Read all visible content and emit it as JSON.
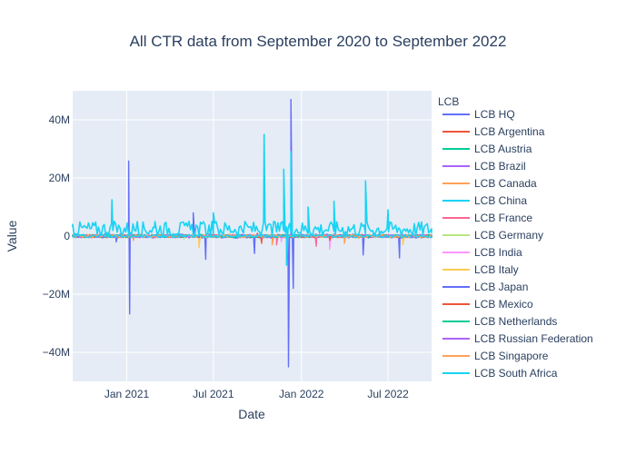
{
  "chart_data": {
    "type": "line",
    "title": "All CTR data from September 2020 to September 2022",
    "xlabel": "Date",
    "ylabel": "Value",
    "xlim": [
      "2020-09-10",
      "2022-09-30"
    ],
    "ylim": [
      -50000000,
      50000000
    ],
    "x_ticks": [
      {
        "date": "2021-01-01",
        "label": "Jan 2021"
      },
      {
        "date": "2021-07-01",
        "label": "Jul 2021"
      },
      {
        "date": "2022-01-01",
        "label": "Jan 2022"
      },
      {
        "date": "2022-07-01",
        "label": "Jul 2022"
      }
    ],
    "y_ticks": [
      {
        "value": 40000000,
        "label": "40M"
      },
      {
        "value": 20000000,
        "label": "20M"
      },
      {
        "value": 0,
        "label": "0"
      },
      {
        "value": -20000000,
        "label": "−20M"
      },
      {
        "value": -40000000,
        "label": "−40M"
      }
    ],
    "grid": true,
    "legend": {
      "title": "LCB",
      "placement": "right"
    },
    "series": [
      {
        "name": "LCB HQ",
        "color": "#636efa",
        "points": [
          [
            "2020-09-10",
            0
          ],
          [
            "2020-12-10",
            -2000000
          ],
          [
            "2021-01-05",
            25800000
          ],
          [
            "2021-01-07",
            -26800000
          ],
          [
            "2021-01-10",
            0
          ],
          [
            "2021-05-20",
            8000000
          ],
          [
            "2021-06-15",
            -8000000
          ],
          [
            "2021-09-25",
            -6000000
          ],
          [
            "2021-12-05",
            -45000000
          ],
          [
            "2021-12-10",
            47000000
          ],
          [
            "2021-12-15",
            -18000000
          ],
          [
            "2022-01-05",
            0
          ],
          [
            "2022-05-10",
            -6500000
          ],
          [
            "2022-07-25",
            -7500000
          ],
          [
            "2022-09-30",
            0
          ]
        ]
      },
      {
        "name": "LCB Argentina",
        "color": "#EF553B",
        "points": [
          [
            "2020-09-10",
            200000
          ],
          [
            "2021-03-01",
            -300000
          ],
          [
            "2021-10-01",
            1000000
          ],
          [
            "2022-01-01",
            -500000
          ],
          [
            "2022-06-01",
            400000
          ],
          [
            "2022-09-30",
            0
          ]
        ]
      },
      {
        "name": "LCB Austria",
        "color": "#00cc96",
        "points": [
          [
            "2020-09-10",
            100000
          ],
          [
            "2021-04-01",
            200000
          ],
          [
            "2021-10-01",
            -200000
          ],
          [
            "2022-03-01",
            300000
          ],
          [
            "2022-09-30",
            0
          ]
        ]
      },
      {
        "name": "LCB Brazil",
        "color": "#ab63fa",
        "points": [
          [
            "2020-09-10",
            0
          ],
          [
            "2021-02-01",
            300000
          ],
          [
            "2021-08-01",
            -400000
          ],
          [
            "2022-02-01",
            500000
          ],
          [
            "2022-09-30",
            0
          ]
        ]
      },
      {
        "name": "LCB Canada",
        "color": "#FFA15A",
        "points": [
          [
            "2020-09-10",
            0
          ],
          [
            "2021-01-15",
            -1500000
          ],
          [
            "2021-06-01",
            -2000000
          ],
          [
            "2021-11-01",
            -3000000
          ],
          [
            "2022-04-01",
            -2500000
          ],
          [
            "2022-09-30",
            0
          ]
        ]
      },
      {
        "name": "LCB China",
        "color": "#19d3f3",
        "points": [
          [
            "2020-09-10",
            4000000
          ],
          [
            "2020-12-01",
            12500000
          ],
          [
            "2021-03-01",
            5000000
          ],
          [
            "2021-07-01",
            8000000
          ],
          [
            "2021-10-15",
            35000000
          ],
          [
            "2021-11-25",
            23000000
          ],
          [
            "2021-12-01",
            -10000000
          ],
          [
            "2021-12-10",
            29000000
          ],
          [
            "2022-01-15",
            10000000
          ],
          [
            "2022-03-10",
            12000000
          ],
          [
            "2022-05-15",
            19000000
          ],
          [
            "2022-07-01",
            9000000
          ],
          [
            "2022-09-30",
            1000000
          ]
        ]
      },
      {
        "name": "LCB France",
        "color": "#FF6692",
        "points": [
          [
            "2020-09-10",
            0
          ],
          [
            "2021-11-10",
            -3000000
          ],
          [
            "2022-02-01",
            -3500000
          ],
          [
            "2022-09-30",
            0
          ]
        ]
      },
      {
        "name": "LCB Germany",
        "color": "#B6E880",
        "points": [
          [
            "2020-09-10",
            500000
          ],
          [
            "2021-05-01",
            -1000000
          ],
          [
            "2022-06-01",
            1000000
          ],
          [
            "2022-09-30",
            0
          ]
        ]
      },
      {
        "name": "LCB India",
        "color": "#FF97FF",
        "points": [
          [
            "2020-09-10",
            0
          ],
          [
            "2021-11-20",
            -2000000
          ],
          [
            "2022-03-01",
            -4500000
          ],
          [
            "2022-09-30",
            0
          ]
        ]
      },
      {
        "name": "LCB Italy",
        "color": "#FECB52",
        "points": [
          [
            "2020-09-10",
            0
          ],
          [
            "2021-06-01",
            -4000000
          ],
          [
            "2022-08-01",
            -3000000
          ],
          [
            "2022-09-30",
            0
          ]
        ]
      },
      {
        "name": "LCB Japan",
        "color": "#636efa",
        "points": [
          [
            "2020-09-10",
            300000
          ],
          [
            "2021-06-01",
            -500000
          ],
          [
            "2022-01-01",
            600000
          ],
          [
            "2022-09-30",
            0
          ]
        ]
      },
      {
        "name": "LCB Mexico",
        "color": "#EF553B",
        "points": [
          [
            "2020-09-10",
            0
          ],
          [
            "2021-10-10",
            -2500000
          ],
          [
            "2022-03-01",
            -1500000
          ],
          [
            "2022-09-30",
            0
          ]
        ]
      },
      {
        "name": "LCB Netherlands",
        "color": "#00cc96",
        "points": [
          [
            "2020-09-10",
            100000
          ],
          [
            "2021-09-01",
            300000
          ],
          [
            "2022-09-30",
            0
          ]
        ]
      },
      {
        "name": "LCB Russian Federation",
        "color": "#ab63fa",
        "points": [
          [
            "2020-09-10",
            0
          ],
          [
            "2021-03-01",
            -400000
          ],
          [
            "2022-04-01",
            400000
          ],
          [
            "2022-09-30",
            0
          ]
        ]
      },
      {
        "name": "LCB Singapore",
        "color": "#FFA15A",
        "points": [
          [
            "2020-09-10",
            0
          ],
          [
            "2021-08-01",
            600000
          ],
          [
            "2022-05-01",
            -800000
          ],
          [
            "2022-09-30",
            0
          ]
        ]
      },
      {
        "name": "LCB South Africa",
        "color": "#19d3f3",
        "points": [
          [
            "2020-09-10",
            200000
          ],
          [
            "2021-06-01",
            900000
          ],
          [
            "2022-06-01",
            1200000
          ],
          [
            "2022-09-30",
            300000
          ]
        ]
      }
    ]
  }
}
